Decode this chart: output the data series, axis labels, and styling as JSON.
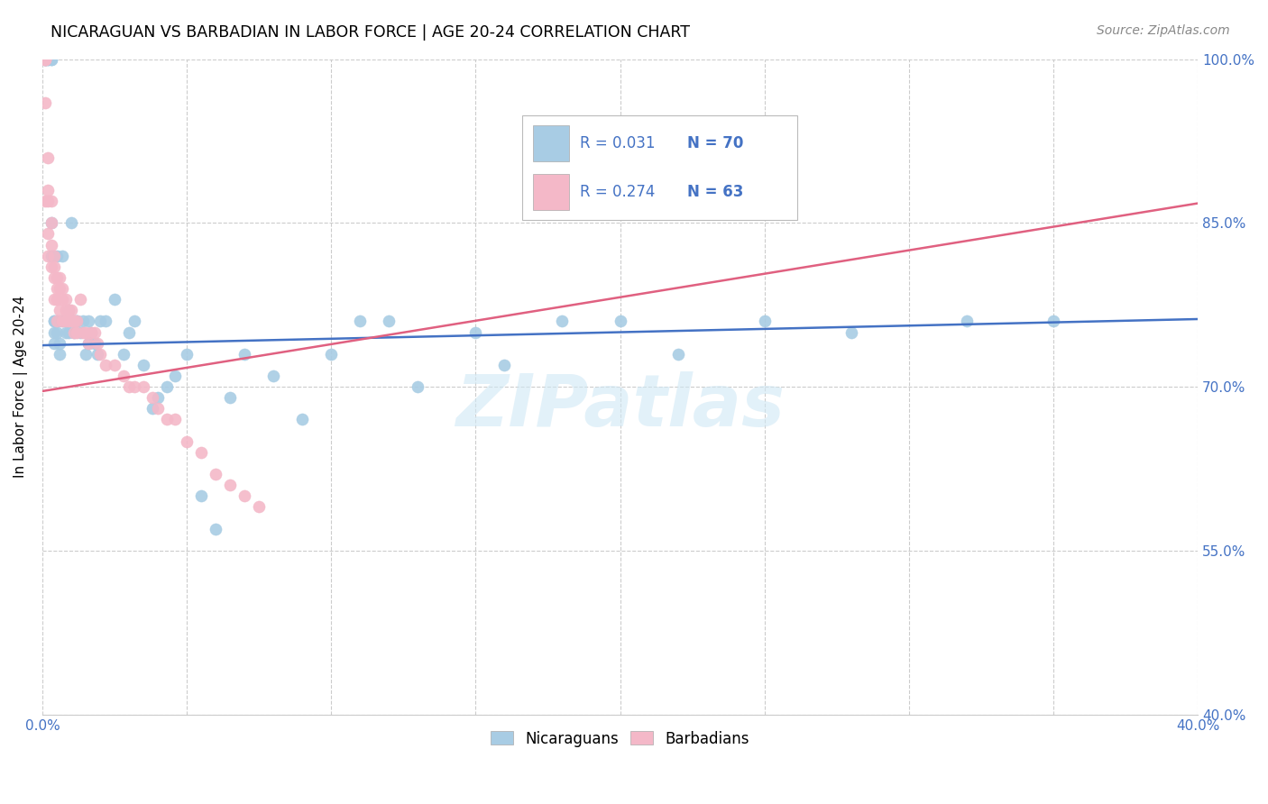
{
  "title": "NICARAGUAN VS BARBADIAN IN LABOR FORCE | AGE 20-24 CORRELATION CHART",
  "source": "Source: ZipAtlas.com",
  "ylabel": "In Labor Force | Age 20-24",
  "xlim": [
    0.0,
    0.4
  ],
  "ylim": [
    0.4,
    1.0
  ],
  "blue_color": "#a8cce4",
  "pink_color": "#f4b8c8",
  "blue_line_color": "#4472c4",
  "pink_line_color": "#e06080",
  "R_blue": 0.031,
  "N_blue": 70,
  "R_pink": 0.274,
  "N_pink": 63,
  "watermark": "ZIPatlas",
  "legend_labels": [
    "Nicaraguans",
    "Barbadians"
  ],
  "blue_scatter_x": [
    0.001,
    0.001,
    0.001,
    0.002,
    0.002,
    0.003,
    0.003,
    0.003,
    0.003,
    0.004,
    0.004,
    0.004,
    0.004,
    0.005,
    0.005,
    0.005,
    0.006,
    0.006,
    0.006,
    0.007,
    0.007,
    0.008,
    0.008,
    0.009,
    0.009,
    0.01,
    0.01,
    0.011,
    0.011,
    0.012,
    0.012,
    0.013,
    0.014,
    0.015,
    0.016,
    0.016,
    0.017,
    0.018,
    0.019,
    0.02,
    0.022,
    0.025,
    0.028,
    0.03,
    0.032,
    0.035,
    0.038,
    0.04,
    0.043,
    0.046,
    0.05,
    0.055,
    0.06,
    0.065,
    0.07,
    0.08,
    0.09,
    0.1,
    0.11,
    0.12,
    0.13,
    0.15,
    0.16,
    0.18,
    0.2,
    0.22,
    0.25,
    0.28,
    0.32,
    0.35
  ],
  "blue_scatter_y": [
    1.0,
    1.0,
    1.0,
    1.0,
    1.0,
    1.0,
    1.0,
    0.85,
    0.82,
    0.76,
    0.75,
    0.74,
    0.76,
    0.82,
    0.76,
    0.75,
    0.76,
    0.73,
    0.74,
    0.76,
    0.82,
    0.76,
    0.75,
    0.77,
    0.75,
    0.85,
    0.76,
    0.76,
    0.75,
    0.76,
    0.76,
    0.75,
    0.76,
    0.73,
    0.74,
    0.76,
    0.75,
    0.74,
    0.73,
    0.76,
    0.76,
    0.78,
    0.73,
    0.75,
    0.76,
    0.72,
    0.68,
    0.69,
    0.7,
    0.71,
    0.73,
    0.6,
    0.57,
    0.69,
    0.73,
    0.71,
    0.67,
    0.73,
    0.76,
    0.76,
    0.7,
    0.75,
    0.72,
    0.76,
    0.76,
    0.73,
    0.76,
    0.75,
    0.76,
    0.76
  ],
  "pink_scatter_x": [
    0.001,
    0.001,
    0.001,
    0.001,
    0.001,
    0.002,
    0.002,
    0.002,
    0.002,
    0.002,
    0.003,
    0.003,
    0.003,
    0.003,
    0.004,
    0.004,
    0.004,
    0.004,
    0.005,
    0.005,
    0.005,
    0.005,
    0.006,
    0.006,
    0.006,
    0.007,
    0.007,
    0.007,
    0.008,
    0.008,
    0.008,
    0.009,
    0.009,
    0.01,
    0.01,
    0.011,
    0.011,
    0.012,
    0.012,
    0.013,
    0.014,
    0.015,
    0.016,
    0.017,
    0.018,
    0.019,
    0.02,
    0.022,
    0.025,
    0.028,
    0.03,
    0.032,
    0.035,
    0.038,
    0.04,
    0.043,
    0.046,
    0.05,
    0.055,
    0.06,
    0.065,
    0.07,
    0.075
  ],
  "pink_scatter_y": [
    1.0,
    1.0,
    1.0,
    0.96,
    0.87,
    0.91,
    0.88,
    0.87,
    0.84,
    0.82,
    0.87,
    0.85,
    0.83,
    0.81,
    0.82,
    0.81,
    0.8,
    0.78,
    0.8,
    0.79,
    0.78,
    0.76,
    0.8,
    0.79,
    0.77,
    0.79,
    0.78,
    0.76,
    0.78,
    0.77,
    0.76,
    0.77,
    0.76,
    0.77,
    0.76,
    0.76,
    0.75,
    0.76,
    0.75,
    0.78,
    0.75,
    0.75,
    0.74,
    0.75,
    0.75,
    0.74,
    0.73,
    0.72,
    0.72,
    0.71,
    0.7,
    0.7,
    0.7,
    0.69,
    0.68,
    0.67,
    0.67,
    0.65,
    0.64,
    0.62,
    0.61,
    0.6,
    0.59
  ],
  "blue_line_x0": 0.0,
  "blue_line_x1": 0.4,
  "blue_line_y0": 0.738,
  "blue_line_y1": 0.762,
  "pink_line_x0": 0.0,
  "pink_line_x1": 0.4,
  "pink_line_y0": 0.696,
  "pink_line_y1": 0.868
}
